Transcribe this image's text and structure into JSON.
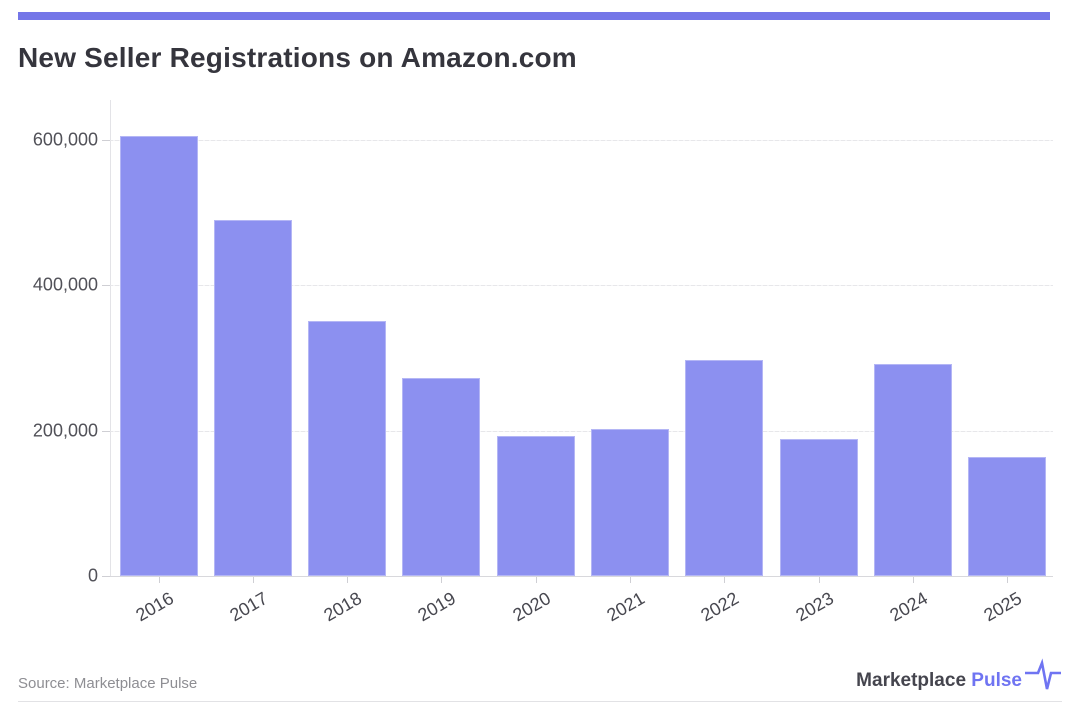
{
  "header": {
    "title": "New Seller Registrations on Amazon.com",
    "accent_color": "#7476e8"
  },
  "chart_data": {
    "type": "bar",
    "title": "New Seller Registrations on Amazon.com",
    "categories": [
      "2016",
      "2017",
      "2018",
      "2019",
      "2020",
      "2021",
      "2022",
      "2023",
      "2024",
      "2025"
    ],
    "values": [
      605000,
      490000,
      350000,
      272000,
      193000,
      202000,
      297000,
      189000,
      292000,
      164000
    ],
    "xlabel": "",
    "ylabel": "",
    "ylim": [
      0,
      620000
    ],
    "yticks": [
      0,
      200000,
      400000,
      600000
    ],
    "ytick_labels": [
      "0",
      "200,000",
      "400,000",
      "600,000"
    ],
    "bar_color": "#8c90f0",
    "grid": true,
    "legend": false
  },
  "footer": {
    "source": "Source: Marketplace Pulse",
    "logo": {
      "brand": "Marketplace ",
      "brand_accent": "Pulse",
      "accent_color": "#6f74f2",
      "icon": "pulse-icon"
    }
  }
}
